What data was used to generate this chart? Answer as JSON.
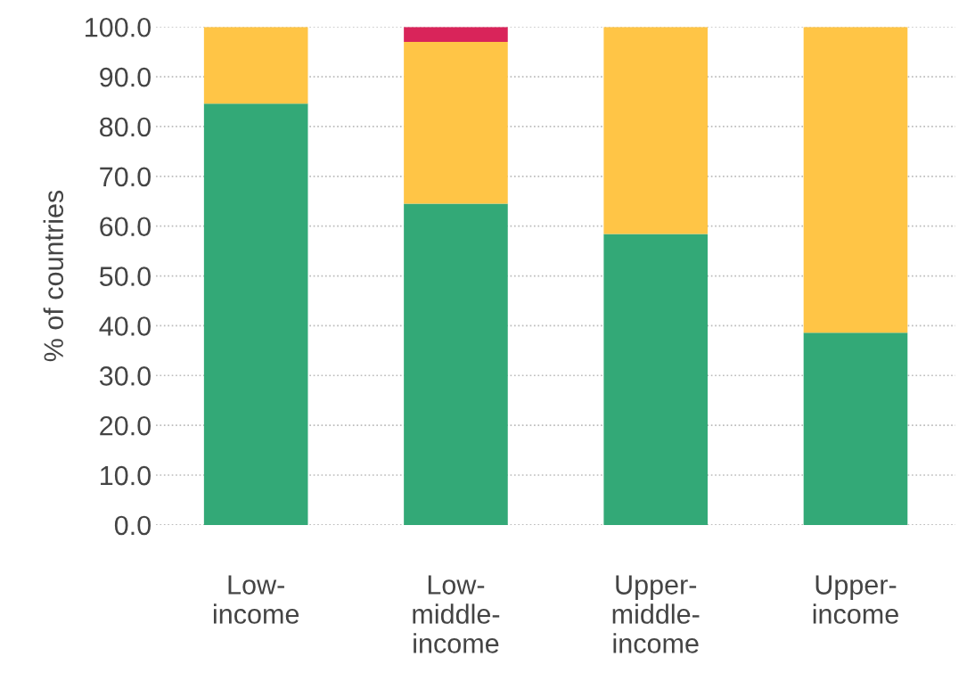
{
  "chart_data": {
    "type": "bar",
    "stacked": true,
    "ylabel": "% of countries",
    "categories": [
      "Low-\nincome",
      "Low-\nmiddle-\nincome",
      "Upper-\nmiddle-\nincome",
      "Upper-\nincome"
    ],
    "series": [
      {
        "color": "#33a977",
        "values": [
          84.6,
          64.5,
          58.4,
          38.6
        ]
      },
      {
        "color": "#ffc546",
        "values": [
          15.4,
          32.5,
          41.6,
          61.4
        ]
      },
      {
        "color": "#d9245a",
        "values": [
          0,
          3.0,
          0,
          0
        ]
      }
    ],
    "ylim": [
      0,
      100
    ],
    "yticks": [
      {
        "value": 0,
        "label": "0.0"
      },
      {
        "value": 10,
        "label": "10.0"
      },
      {
        "value": 20,
        "label": "20.0"
      },
      {
        "value": 30,
        "label": "30.0"
      },
      {
        "value": 40,
        "label": "40.0"
      },
      {
        "value": 50,
        "label": "50.0"
      },
      {
        "value": 60,
        "label": "60.0"
      },
      {
        "value": 70,
        "label": "70.0"
      },
      {
        "value": 80,
        "label": "80.0"
      },
      {
        "value": 90,
        "label": "90.0"
      },
      {
        "value": 100,
        "label": "100.0"
      }
    ],
    "grid": "y"
  }
}
